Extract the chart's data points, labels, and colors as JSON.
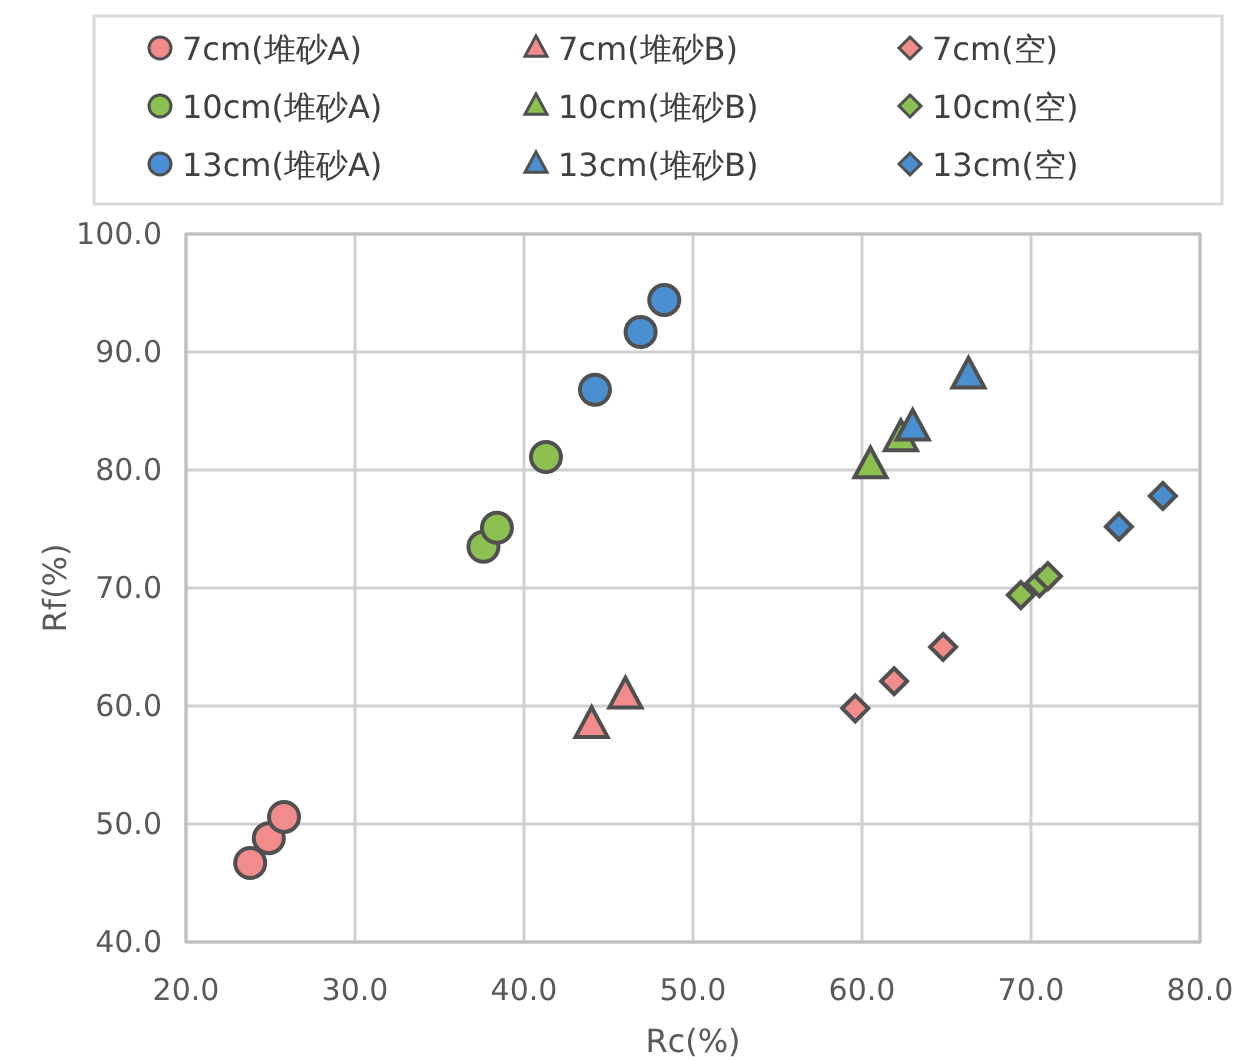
{
  "chart_data": {
    "type": "scatter",
    "xlabel": "Rc(%)",
    "ylabel": "Rf(%)",
    "xlim": [
      20,
      80
    ],
    "ylim": [
      40,
      100
    ],
    "xticks": [
      {
        "value": 20,
        "label": "20.0"
      },
      {
        "value": 30,
        "label": "30.0"
      },
      {
        "value": 40,
        "label": "40.0"
      },
      {
        "value": 50,
        "label": "50.0"
      },
      {
        "value": 60,
        "label": "60.0"
      },
      {
        "value": 70,
        "label": "70.0"
      },
      {
        "value": 80,
        "label": "80.0"
      }
    ],
    "yticks": [
      {
        "value": 40,
        "label": "40.0"
      },
      {
        "value": 50,
        "label": "50.0"
      },
      {
        "value": 60,
        "label": "60.0"
      },
      {
        "value": 70,
        "label": "70.0"
      },
      {
        "value": 80,
        "label": "80.0"
      },
      {
        "value": 90,
        "label": "90.0"
      },
      {
        "value": 100,
        "label": "100.0"
      }
    ],
    "grid": true,
    "legend": "top",
    "series": [
      {
        "name": "7cm(堆砂A)",
        "color": "#f28b8b",
        "marker": "circle",
        "x": [
          23.8,
          24.9,
          25.8
        ],
        "values": [
          46.7,
          48.8,
          50.6
        ]
      },
      {
        "name": "7cm(堆砂B)",
        "color": "#f28b8b",
        "marker": "triangle",
        "x": [
          44.0,
          46.0
        ],
        "values": [
          58.4,
          60.9
        ]
      },
      {
        "name": "7cm(空)",
        "color": "#f28b8b",
        "marker": "diamond",
        "x": [
          59.6,
          61.9,
          64.8
        ],
        "values": [
          59.8,
          62.1,
          65.0
        ]
      },
      {
        "name": "10cm(堆砂A)",
        "color": "#8cc152",
        "marker": "circle",
        "x": [
          37.6,
          38.4,
          41.3
        ],
        "values": [
          73.5,
          75.1,
          81.1
        ]
      },
      {
        "name": "10cm(堆砂B)",
        "color": "#8cc152",
        "marker": "triangle",
        "x": [
          60.5,
          62.3
        ],
        "values": [
          80.4,
          82.7
        ]
      },
      {
        "name": "10cm(空)",
        "color": "#8cc152",
        "marker": "diamond",
        "x": [
          69.4,
          70.5,
          71.0
        ],
        "values": [
          69.4,
          70.4,
          71.0
        ]
      },
      {
        "name": "13cm(堆砂A)",
        "color": "#4a90d0",
        "marker": "circle",
        "x": [
          44.2,
          46.9,
          48.3
        ],
        "values": [
          86.8,
          91.7,
          94.4
        ]
      },
      {
        "name": "13cm(堆砂B)",
        "color": "#4a90d0",
        "marker": "triangle",
        "x": [
          63.0,
          66.3
        ],
        "values": [
          83.6,
          88.0
        ]
      },
      {
        "name": "13cm(空)",
        "color": "#4a90d0",
        "marker": "diamond",
        "x": [
          null,
          75.2,
          77.8
        ],
        "values": [
          null,
          75.2,
          77.8
        ]
      }
    ]
  }
}
